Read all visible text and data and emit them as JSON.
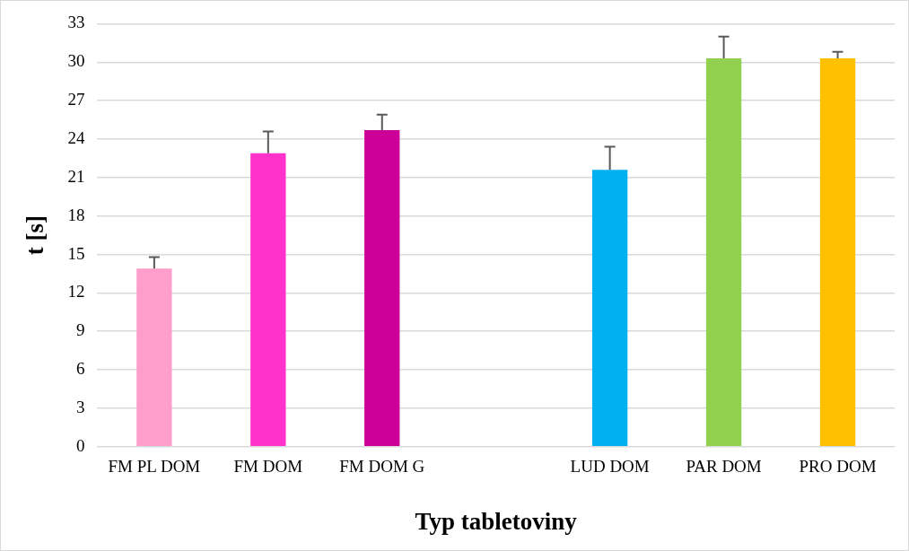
{
  "chart_data": {
    "type": "bar",
    "xlabel": "Typ tabletoviny",
    "ylabel": "t [s]",
    "categories": [
      "FM PL DOM",
      "FM DOM",
      "FM DOM G",
      null,
      "LUD DOM",
      "PAR DOM",
      "PRO DOM"
    ],
    "values": [
      13.9,
      22.9,
      24.7,
      null,
      21.6,
      30.3,
      30.3
    ],
    "errors": [
      0.9,
      1.7,
      1.2,
      null,
      1.8,
      1.7,
      0.5
    ],
    "colors": [
      "#ff9dcb",
      "#ff33cc",
      "#cc0099",
      null,
      "#00b0f0",
      "#92d050",
      "#ffc000"
    ],
    "ylim": [
      0,
      33
    ],
    "yticks": [
      0,
      3,
      6,
      9,
      12,
      15,
      18,
      21,
      24,
      27,
      30,
      33
    ],
    "grid": "y",
    "legend": false
  }
}
